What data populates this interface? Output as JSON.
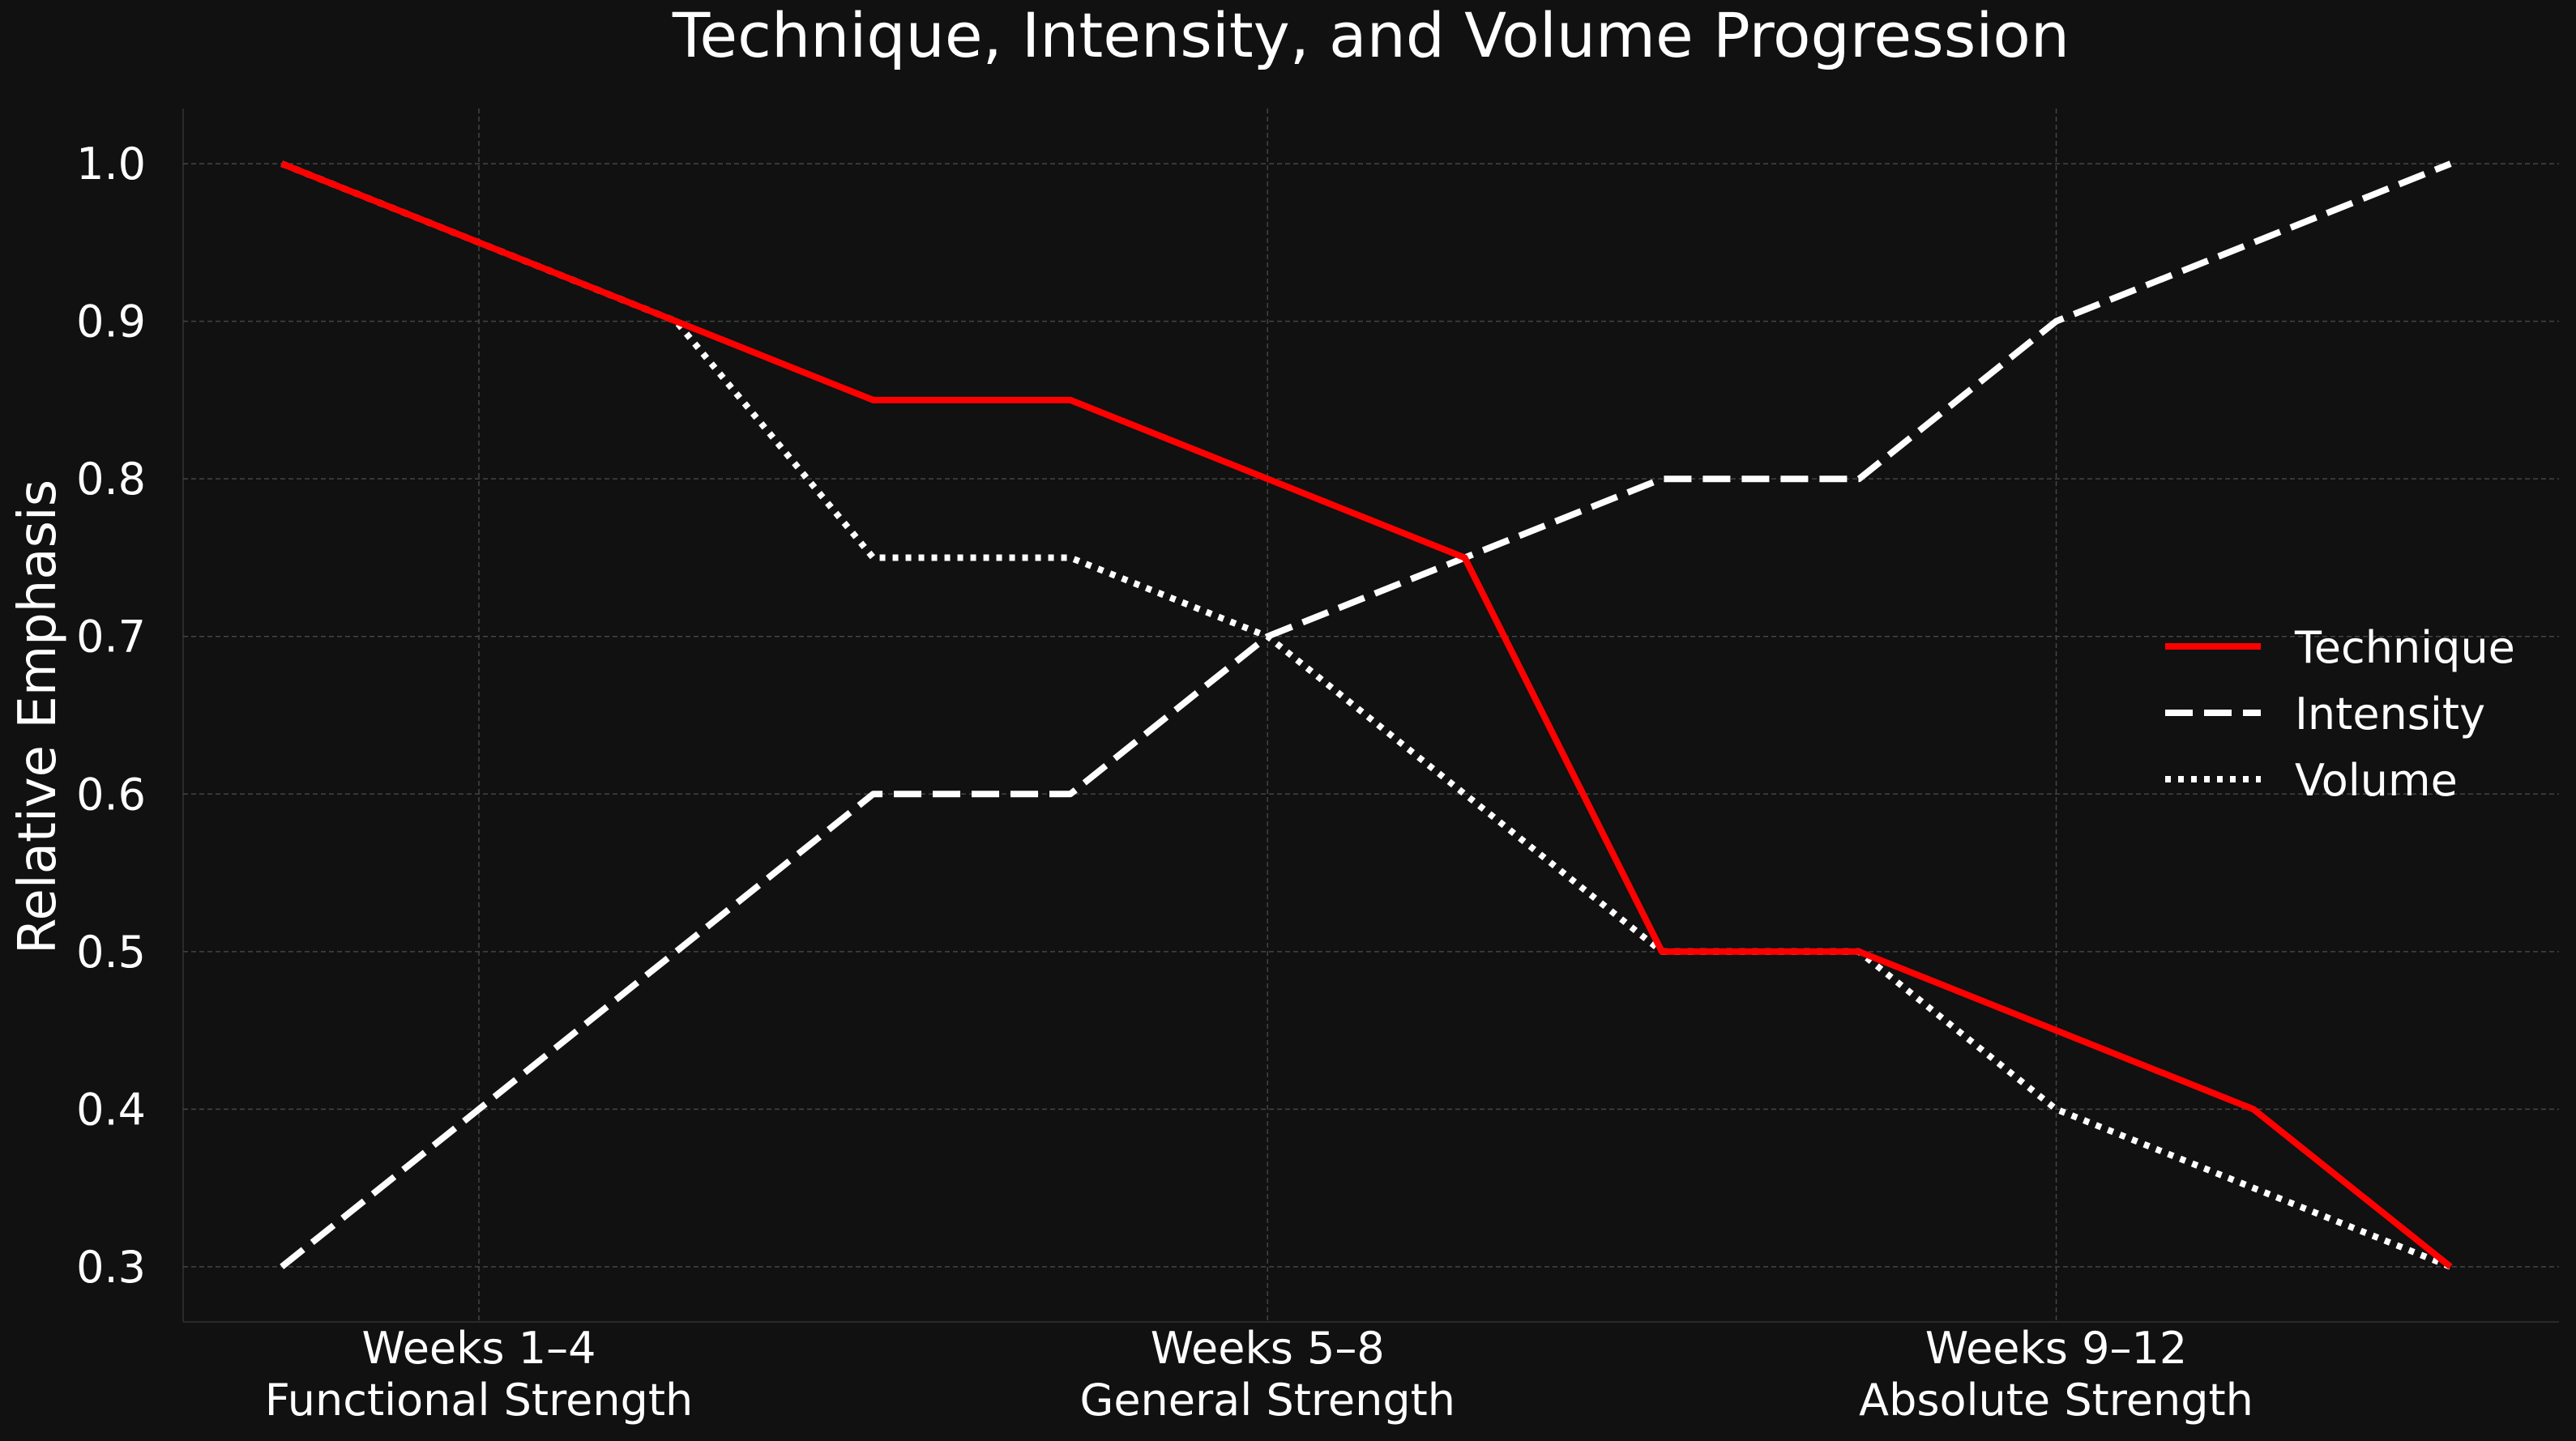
{
  "chart_data": {
    "type": "line",
    "title": "Technique, Intensity, and Volume Progression",
    "xlabel": "",
    "ylabel": "Relative Emphasis",
    "x": [
      1,
      2,
      3,
      4,
      5,
      6,
      7,
      8,
      9,
      10,
      11,
      12
    ],
    "xlim": [
      0.5,
      12.55
    ],
    "ylim": [
      0.265,
      1.035
    ],
    "yticks": [
      0.3,
      0.4,
      0.5,
      0.6,
      0.7,
      0.8,
      0.9,
      1.0
    ],
    "ytick_labels": [
      "0.3",
      "0.4",
      "0.5",
      "0.6",
      "0.7",
      "0.8",
      "0.9",
      "1.0"
    ],
    "xticks": [
      {
        "x": 2,
        "line1": "Weeks 1–4",
        "line2": "Functional Strength"
      },
      {
        "x": 6,
        "line1": "Weeks 5–8",
        "line2": "General Strength"
      },
      {
        "x": 10,
        "line1": "Weeks 9–12",
        "line2": "Absolute Strength"
      }
    ],
    "grid": true,
    "legend_position": "center-right",
    "series": [
      {
        "name": "Technique",
        "style": "solid",
        "color": "#ff0000",
        "values": [
          1.0,
          0.95,
          0.9,
          0.85,
          0.85,
          0.8,
          0.75,
          0.5,
          0.5,
          0.45,
          0.4,
          0.3
        ]
      },
      {
        "name": "Intensity",
        "style": "dashed",
        "color": "#ffffff",
        "values": [
          0.3,
          0.4,
          0.5,
          0.6,
          0.6,
          0.7,
          0.75,
          0.8,
          0.8,
          0.9,
          0.95,
          1.0
        ]
      },
      {
        "name": "Volume",
        "style": "dotted",
        "color": "#ffffff",
        "values": [
          1.0,
          0.95,
          0.9,
          0.75,
          0.75,
          0.7,
          0.6,
          0.5,
          0.5,
          0.4,
          0.35,
          0.3
        ]
      }
    ],
    "colors": {
      "background": "#111111",
      "text": "#ffffff",
      "grid": "#444444",
      "spine": "#2a2a2a"
    }
  }
}
